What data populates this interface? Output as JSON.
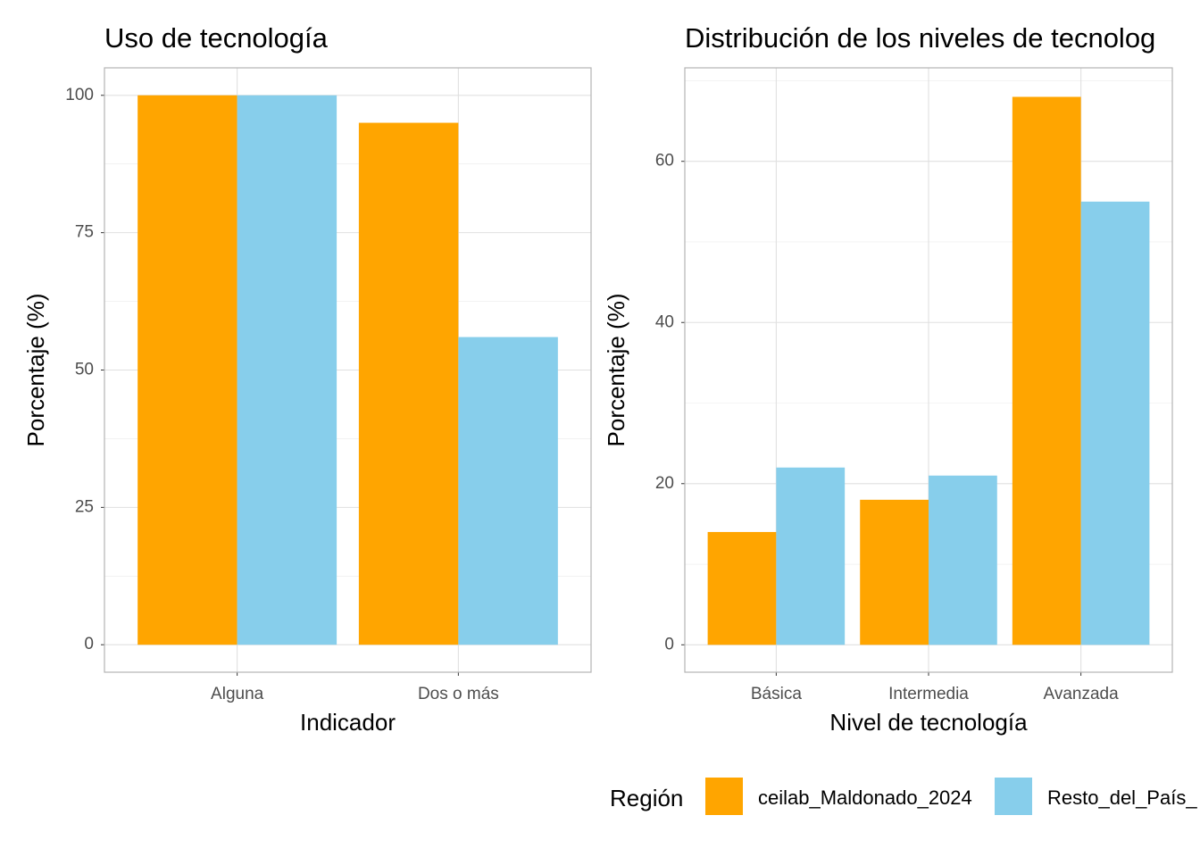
{
  "chart_data": [
    {
      "type": "bar",
      "title": "Uso de tecnología",
      "x_label": "Indicador",
      "y_label": "Porcentaje (%)",
      "categories": [
        "Alguna",
        "Dos o más"
      ],
      "series": [
        {
          "color": "#FFA500",
          "values": [
            100,
            95
          ]
        },
        {
          "color": "#87CEEB",
          "values": [
            100,
            56
          ]
        }
      ],
      "ylim": [
        -5,
        105
      ],
      "yticks": [
        0,
        25,
        50,
        75,
        100
      ],
      "grid": true
    },
    {
      "type": "bar",
      "title": "Distribución de los niveles de tecnolog",
      "x_label": "Nivel de tecnología",
      "y_label": "Porcentaje (%)",
      "categories": [
        "Básica",
        "Intermedia",
        "Avanzada"
      ],
      "series": [
        {
          "color": "#FFA500",
          "values": [
            14,
            18,
            68
          ]
        },
        {
          "color": "#87CEEB",
          "values": [
            22,
            21,
            55
          ]
        }
      ],
      "ylim": [
        -3.4,
        71.6
      ],
      "yticks": [
        0,
        20,
        40,
        60
      ],
      "grid": true
    }
  ],
  "legend": {
    "title": "Región",
    "entries": [
      {
        "name": "ceilab_Maldonado_2024",
        "color": "#FFA500"
      },
      {
        "name": "Resto_del_País_",
        "color": "#87CEEB"
      }
    ]
  }
}
